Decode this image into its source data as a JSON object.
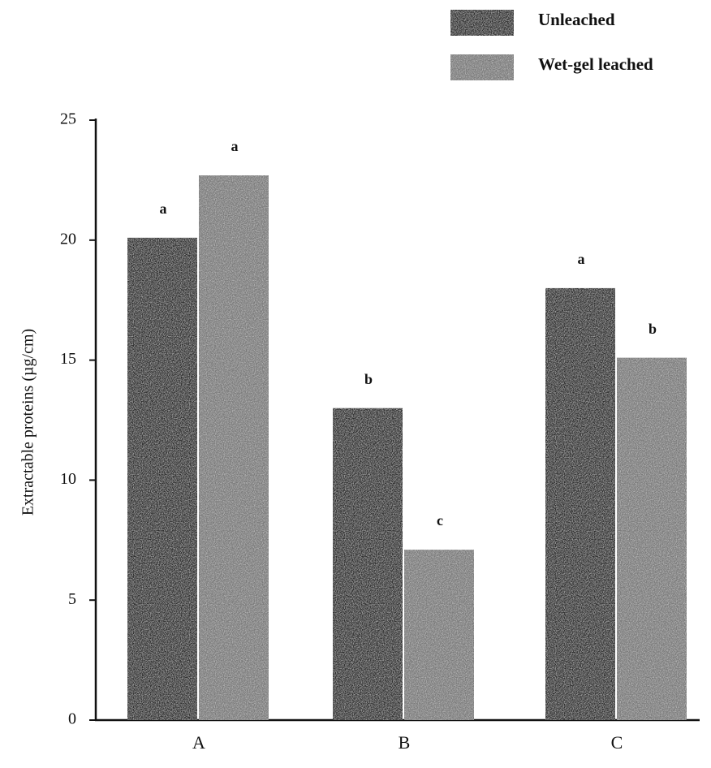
{
  "chart_data": {
    "type": "bar",
    "y_label": "Extractable proteins (µg/cm)",
    "categories": [
      "A",
      "B",
      "C"
    ],
    "series": [
      {
        "name": "Unleached",
        "color": "#2e2e2e",
        "values": [
          20.1,
          13.0,
          18.0
        ],
        "significance": [
          "a",
          "b",
          "a"
        ]
      },
      {
        "name": "Wet-gel leached",
        "color": "#7a7a7a",
        "values": [
          22.7,
          7.1,
          15.1
        ],
        "significance": [
          "a",
          "c",
          "b"
        ]
      }
    ],
    "ylim": [
      0,
      25
    ],
    "yticks": [
      0,
      5,
      10,
      15,
      20,
      25
    ]
  }
}
